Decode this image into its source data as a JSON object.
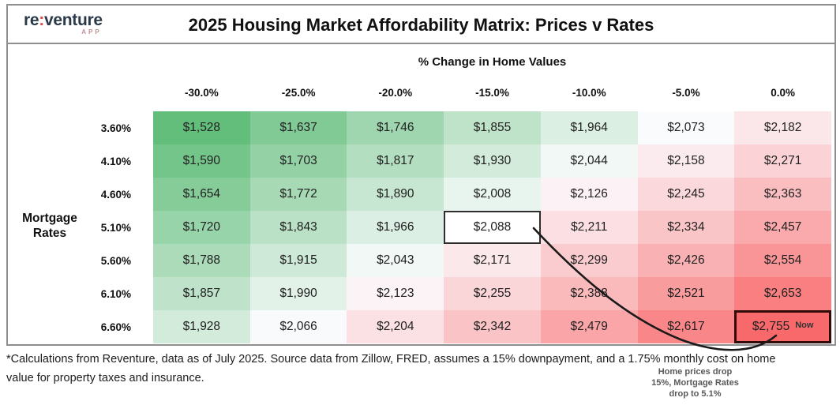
{
  "logo": {
    "brand_re": "re",
    "brand_colon": ":",
    "brand_rest": "venture",
    "sub": "APP",
    "brand_color": "#2b3a49",
    "colon_color": "#e0474e"
  },
  "chart_data": {
    "type": "heatmap",
    "title": "2025 Housing Market Affordability Matrix: Prices v Rates",
    "x_axis_label": "% Change in Home Values",
    "y_axis_label": "Mortgage Rates",
    "x_ticks": [
      "-30.0%",
      "-25.0%",
      "-20.0%",
      "-15.0%",
      "-10.0%",
      "-5.0%",
      "0.0%"
    ],
    "y_ticks": [
      "3.60%",
      "4.10%",
      "4.60%",
      "5.10%",
      "5.60%",
      "6.10%",
      "6.60%"
    ],
    "value_prefix": "$",
    "values": [
      [
        1528,
        1637,
        1746,
        1855,
        1964,
        2073,
        2182
      ],
      [
        1590,
        1703,
        1817,
        1930,
        2044,
        2158,
        2271
      ],
      [
        1654,
        1772,
        1890,
        2008,
        2126,
        2245,
        2363
      ],
      [
        1720,
        1843,
        1966,
        2088,
        2211,
        2334,
        2457
      ],
      [
        1788,
        1915,
        2043,
        2171,
        2299,
        2426,
        2554
      ],
      [
        1857,
        1990,
        2123,
        2255,
        2388,
        2521,
        2653
      ],
      [
        1928,
        2066,
        2204,
        2342,
        2479,
        2617,
        2755
      ]
    ],
    "color_scale": {
      "min_color": "#63BE7B",
      "mid_color": "#FCFCFF",
      "max_color": "#F8696B",
      "min_value": 1528,
      "mid_value": 2080,
      "max_value": 2755
    },
    "highlight_cell": {
      "row_index": 3,
      "col_index": 3,
      "value": 2088
    },
    "now_cell": {
      "row_index": 6,
      "col_index": 6,
      "value": 2755,
      "badge": "Now"
    },
    "legend_position": "none",
    "grid": false
  },
  "annotation": {
    "lines": [
      "Home prices drop",
      "15%, Mortgage Rates",
      "drop to 5.1%"
    ]
  },
  "footnote": "*Calculations from Reventure, data as of July 2025. Source data from Zillow, FRED, assumes a 15% downpayment, and a 1.75% monthly cost on home value for property taxes and insurance."
}
